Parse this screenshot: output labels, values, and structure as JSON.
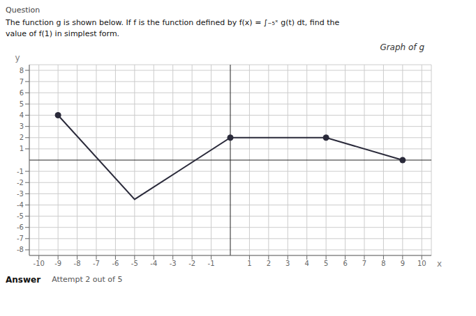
{
  "chart_data": {
    "type": "line",
    "title": "Graph of g",
    "xlabel": "x",
    "ylabel": "y",
    "xlim": [
      -10.5,
      10.5
    ],
    "ylim": [
      -8.5,
      8.5
    ],
    "xticks": [
      -10,
      -9,
      -8,
      -7,
      -6,
      -5,
      -4,
      -3,
      -2,
      -1,
      1,
      2,
      3,
      4,
      5,
      6,
      7,
      8,
      9,
      10
    ],
    "yticks": [
      -8,
      -7,
      -6,
      -5,
      -4,
      -3,
      -2,
      -1,
      1,
      2,
      3,
      4,
      5,
      6,
      7,
      8
    ],
    "grid": true,
    "series": [
      {
        "type": "line",
        "x": [
          -9,
          -5,
          0,
          5,
          9
        ],
        "values": [
          4,
          -3.5,
          2,
          2,
          0
        ],
        "color": "#2a2a3a",
        "marker": "none"
      },
      {
        "type": "scatter",
        "x": [
          -9,
          0,
          5,
          9
        ],
        "values": [
          4,
          2,
          2,
          0
        ],
        "color": "#2a2a3a",
        "marker": "circle"
      }
    ],
    "annotations": [
      "Question",
      "The function g is shown below. If f is the function defined by f(x) = ∫₋₅ˣ g(t) dt, find the",
      "value of f(1) in simplest form.",
      "Answer",
      "Attempt 2 out of 5"
    ]
  }
}
